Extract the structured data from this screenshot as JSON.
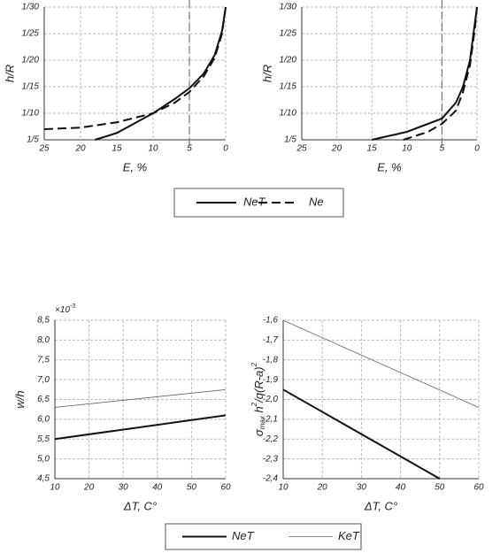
{
  "chart_data": [
    {
      "type": "line",
      "xlabel": "E, %",
      "ylabel": "h/R",
      "xlim": [
        25,
        0
      ],
      "xticks": [
        25,
        20,
        15,
        10,
        5,
        0
      ],
      "ylim": [
        0.2,
        0.03333
      ],
      "yscale": "reciprocal",
      "grid": true,
      "vline": 5,
      "yticks": [
        {
          "value": 0.2,
          "label": "1/5"
        },
        {
          "value": 0.1,
          "label": "1/10"
        },
        {
          "value": 0.06667,
          "label": "1/15"
        },
        {
          "value": 0.05,
          "label": "1/20"
        },
        {
          "value": 0.04,
          "label": "1/25"
        },
        {
          "value": 0.03333,
          "label": "1/30"
        }
      ],
      "series": [
        {
          "name": "NeT",
          "color": "#111111",
          "style": "solid",
          "weight": "bold",
          "x": [
            18,
            15,
            10,
            7,
            5,
            3,
            1.5,
            0.5,
            0
          ],
          "values": [
            0.2,
            0.159,
            0.1,
            0.0787,
            0.068,
            0.0571,
            0.0476,
            0.0392,
            0.03333
          ]
        },
        {
          "name": "Ne",
          "color": "#111111",
          "style": "dashed",
          "weight": "bold",
          "x": [
            25,
            20,
            15,
            10,
            7,
            5,
            3,
            1.5,
            0.5,
            0
          ],
          "values": [
            0.1429,
            0.137,
            0.1205,
            0.1,
            0.0833,
            0.0714,
            0.0588,
            0.0488,
            0.04,
            0.03333
          ]
        }
      ]
    },
    {
      "type": "line",
      "xlabel": "E, %",
      "ylabel": "h/R",
      "xlim": [
        25,
        0
      ],
      "xticks": [
        25,
        20,
        15,
        10,
        5,
        0
      ],
      "ylim": [
        0.2,
        0.03333
      ],
      "yscale": "reciprocal",
      "grid": true,
      "vline": 5,
      "yticks": [
        {
          "value": 0.2,
          "label": "1/5"
        },
        {
          "value": 0.1,
          "label": "1/10"
        },
        {
          "value": 0.06667,
          "label": "1/15"
        },
        {
          "value": 0.05,
          "label": "1/20"
        },
        {
          "value": 0.04,
          "label": "1/25"
        },
        {
          "value": 0.03333,
          "label": "1/30"
        }
      ],
      "series": [
        {
          "name": "NeT",
          "color": "#111111",
          "style": "solid",
          "weight": "bold",
          "x": [
            15,
            10,
            5,
            3,
            2,
            1,
            0.3,
            0
          ],
          "values": [
            0.2,
            0.1538,
            0.1111,
            0.0833,
            0.0667,
            0.05,
            0.037,
            0.03333
          ]
        },
        {
          "name": "Ne",
          "color": "#111111",
          "style": "dashed",
          "weight": "bold",
          "x": [
            10.5,
            7,
            5,
            3,
            2,
            1,
            0.3,
            0
          ],
          "values": [
            0.2,
            0.1538,
            0.125,
            0.0952,
            0.0714,
            0.0526,
            0.0385,
            0.03333
          ]
        }
      ]
    },
    {
      "type": "line",
      "xlabel": "ΔT, C°",
      "ylabel": [
        {
          "text": "w/h",
          "pos": "base"
        }
      ],
      "multiplier": "×10",
      "multiplier_exp": "-3",
      "xlim": [
        10,
        60
      ],
      "xticks": [
        10,
        20,
        30,
        40,
        50,
        60
      ],
      "ylim": [
        4.5,
        8.5
      ],
      "grid": true,
      "yticks": [
        {
          "value": 4.5,
          "label": "4,5"
        },
        {
          "value": 5,
          "label": "5,0"
        },
        {
          "value": 5.5,
          "label": "5,5"
        },
        {
          "value": 6,
          "label": "6,0"
        },
        {
          "value": 6.5,
          "label": "6,5"
        },
        {
          "value": 7,
          "label": "7,0"
        },
        {
          "value": 7.5,
          "label": "7,5"
        },
        {
          "value": 8,
          "label": "8,0"
        },
        {
          "value": 8.5,
          "label": "8,5"
        }
      ],
      "series": [
        {
          "name": "NeT",
          "color": "#111111",
          "style": "solid",
          "weight": "bold",
          "x": [
            10,
            60
          ],
          "values": [
            5.5,
            6.1
          ]
        },
        {
          "name": "KeT",
          "color": "#666666",
          "style": "solid",
          "weight": "thin",
          "x": [
            10,
            60
          ],
          "values": [
            6.3,
            6.75
          ]
        }
      ]
    },
    {
      "type": "line",
      "xlabel": "ΔT, C°",
      "ylabel": [
        {
          "text": "σ",
          "pos": "base"
        },
        {
          "text": "max",
          "pos": "sub"
        },
        {
          "text": " h",
          "pos": "base"
        },
        {
          "text": "2",
          "pos": "sup"
        },
        {
          "text": "/q(R-a)",
          "pos": "base"
        },
        {
          "text": "2",
          "pos": "sup"
        }
      ],
      "xlim": [
        10,
        60
      ],
      "xticks": [
        10,
        20,
        30,
        40,
        50,
        60
      ],
      "ylim": [
        -2.4,
        -1.6
      ],
      "grid": true,
      "yticks": [
        {
          "value": -2.4,
          "label": "-2,4"
        },
        {
          "value": -2.3,
          "label": "-2,3"
        },
        {
          "value": -2.2,
          "label": "-2,2"
        },
        {
          "value": -2.1,
          "label": "-2,1"
        },
        {
          "value": -2.0,
          "label": "-2,0"
        },
        {
          "value": -1.9,
          "label": "-1,9"
        },
        {
          "value": -1.8,
          "label": "-1,8"
        },
        {
          "value": -1.7,
          "label": "-1,7"
        },
        {
          "value": -1.6,
          "label": "-1,6"
        }
      ],
      "series": [
        {
          "name": "NeT",
          "color": "#111111",
          "style": "solid",
          "weight": "bold",
          "x": [
            10,
            50
          ],
          "values": [
            -1.95,
            -2.4
          ]
        },
        {
          "name": "KeT",
          "color": "#666666",
          "style": "solid",
          "weight": "thin",
          "x": [
            10,
            60
          ],
          "values": [
            -1.6,
            -2.04
          ]
        }
      ]
    }
  ]
}
